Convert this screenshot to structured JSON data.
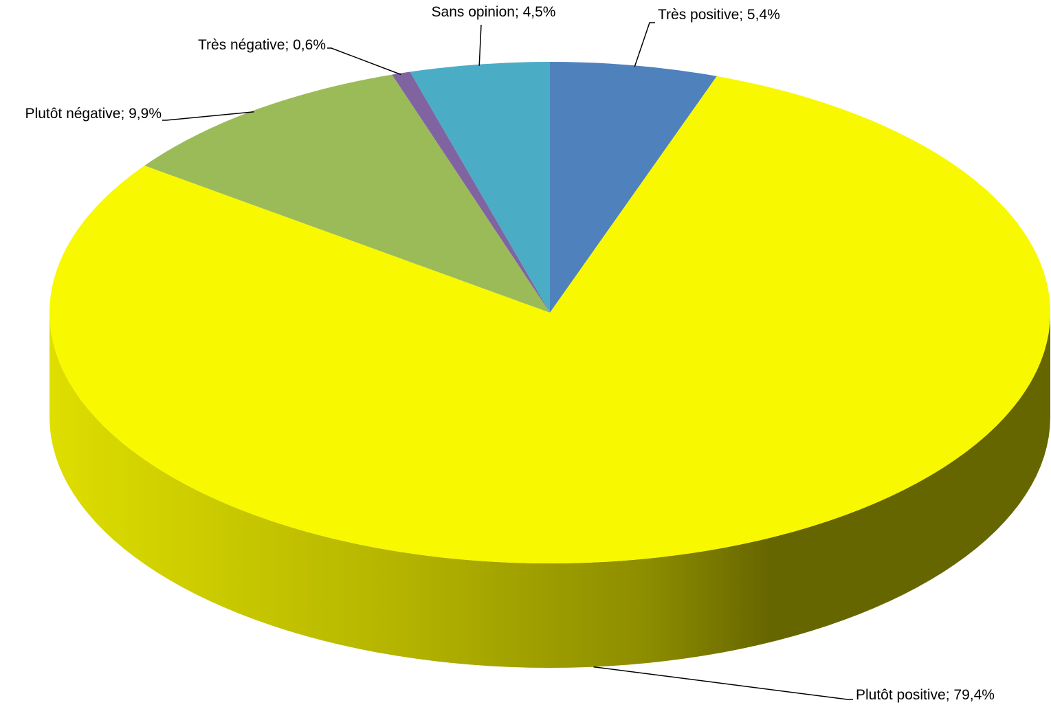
{
  "chart_data": {
    "type": "pie",
    "style": "3d",
    "title": "",
    "label_separator": "; ",
    "slices": [
      {
        "label": "Très positive",
        "value": 5.4,
        "value_text": "5,4%",
        "color": "#4f81bd"
      },
      {
        "label": "Plutôt positive",
        "value": 79.4,
        "value_text": "79,4%",
        "color": "#f8f800"
      },
      {
        "label": "Plutôt négative",
        "value": 9.9,
        "value_text": "9,9%",
        "color": "#9bbb59"
      },
      {
        "label": "Très négative",
        "value": 0.6,
        "value_text": "0,6%",
        "color": "#8064a2"
      },
      {
        "label": "Sans opinion",
        "value": 4.5,
        "value_text": "4,5%",
        "color": "#4bacc6"
      }
    ]
  }
}
